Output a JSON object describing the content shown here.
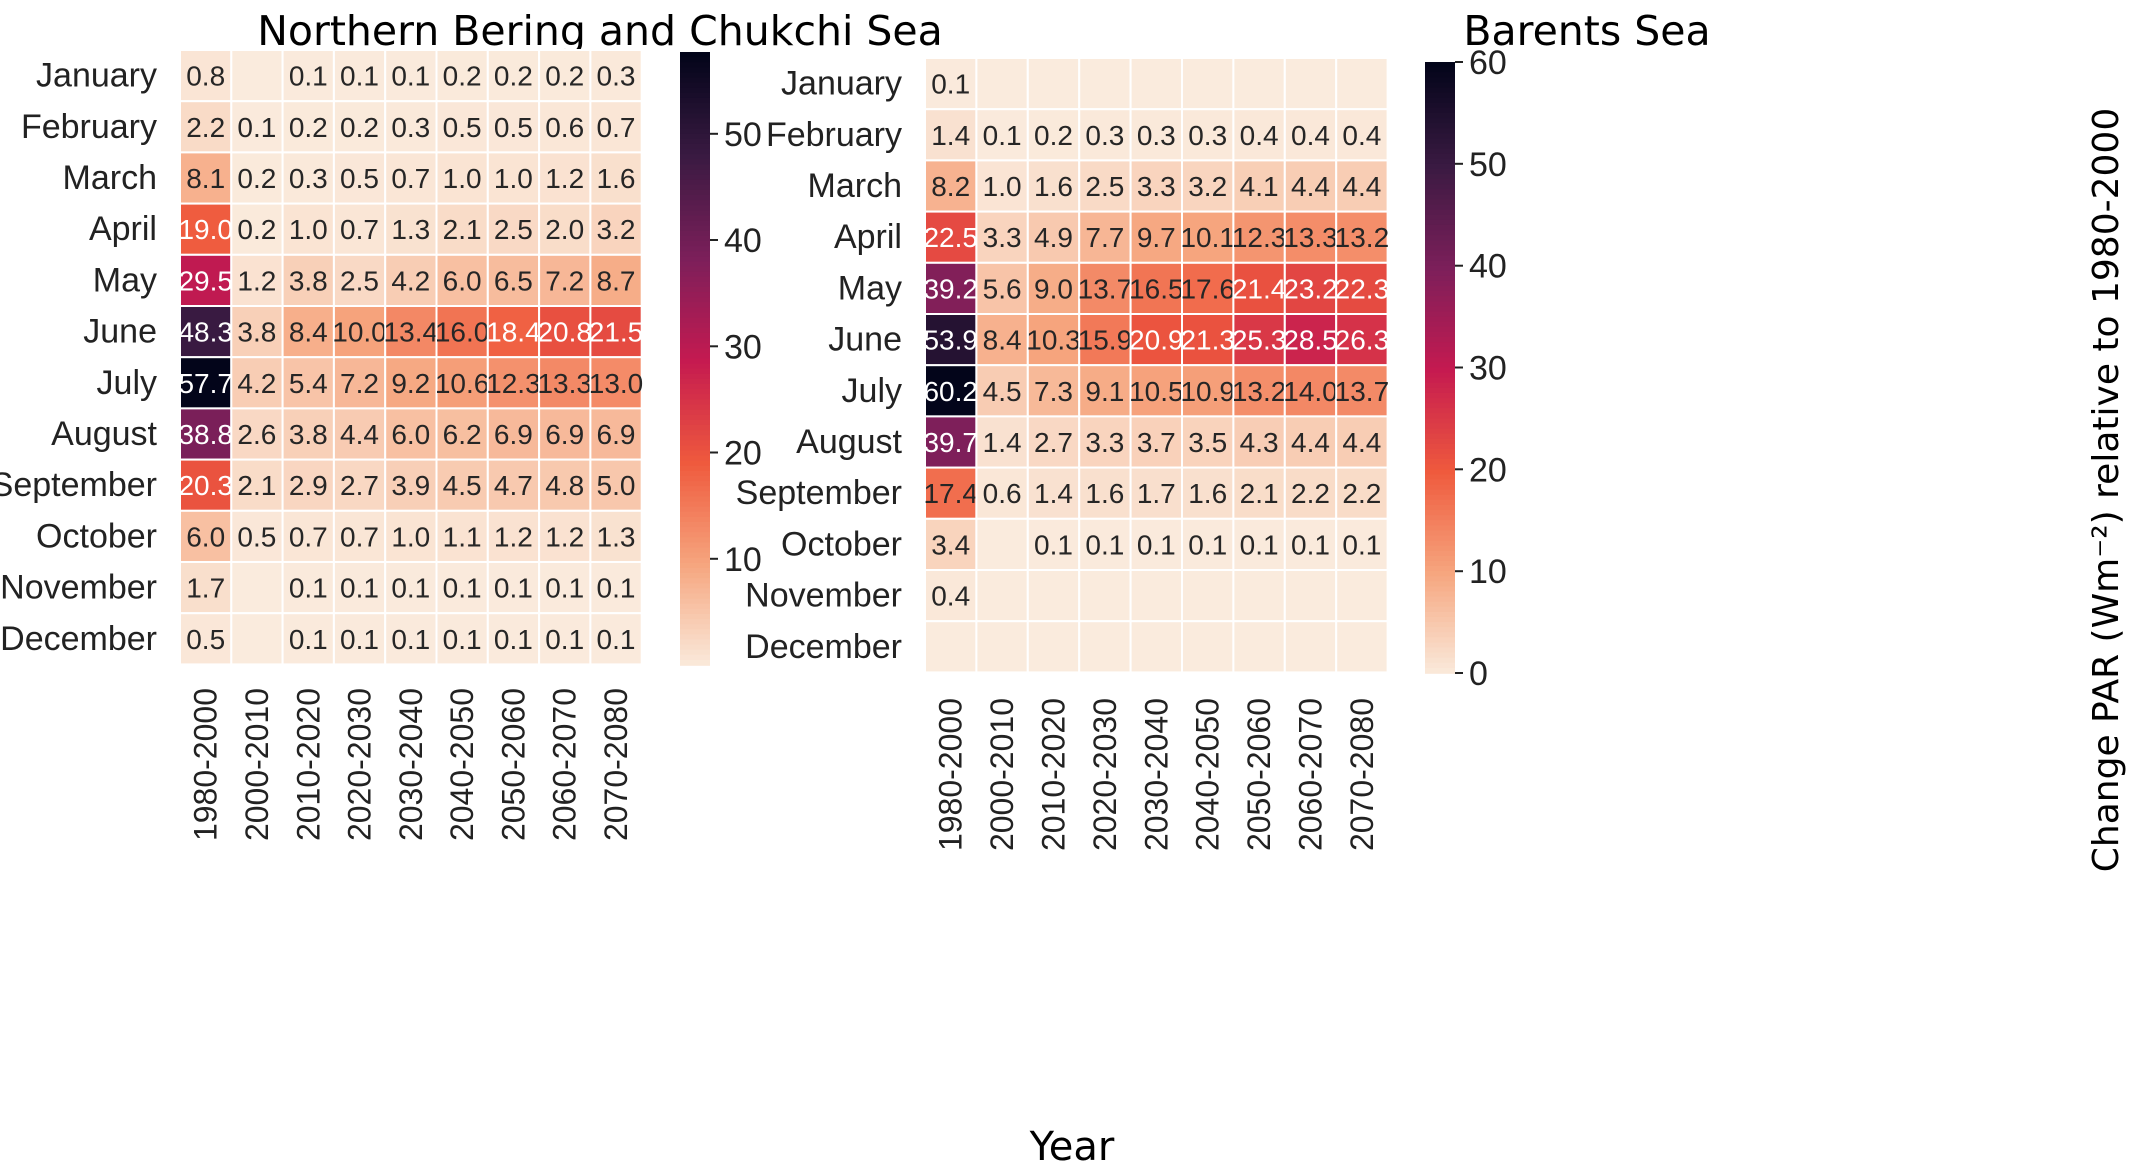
{
  "chart_data": {
    "type": "heatmap",
    "xlabel": "Year",
    "months": [
      "January",
      "February",
      "March",
      "April",
      "May",
      "June",
      "July",
      "August",
      "September",
      "October",
      "November",
      "December"
    ],
    "periods": [
      "1980-2000",
      "2000-2010",
      "2010-2020",
      "2020-2030",
      "2030-2040",
      "2040-2050",
      "2050-2060",
      "2060-2070",
      "2070-2080"
    ],
    "panels": [
      {
        "title": "Northern Bering and Chukchi Sea",
        "colorbar_range": [
          0,
          57.7
        ],
        "colorbar_ticks": [
          10,
          20,
          30,
          40,
          50
        ],
        "values": [
          [
            0.8,
            null,
            0.1,
            0.1,
            0.1,
            0.2,
            0.2,
            0.2,
            0.3
          ],
          [
            2.2,
            0.1,
            0.2,
            0.2,
            0.3,
            0.5,
            0.5,
            0.6,
            0.7
          ],
          [
            8.1,
            0.2,
            0.3,
            0.5,
            0.7,
            1.0,
            1.0,
            1.2,
            1.6
          ],
          [
            19.0,
            0.2,
            1.0,
            0.7,
            1.3,
            2.1,
            2.5,
            2.0,
            3.2
          ],
          [
            29.5,
            1.2,
            3.8,
            2.5,
            4.2,
            6.0,
            6.5,
            7.2,
            8.7
          ],
          [
            48.3,
            3.8,
            8.4,
            10.0,
            13.4,
            16.0,
            18.4,
            20.8,
            21.5
          ],
          [
            57.7,
            4.2,
            5.4,
            7.2,
            9.2,
            10.6,
            12.3,
            13.3,
            13.0
          ],
          [
            38.8,
            2.6,
            3.8,
            4.4,
            6.0,
            6.2,
            6.9,
            6.9,
            6.9
          ],
          [
            20.3,
            2.1,
            2.9,
            2.7,
            3.9,
            4.5,
            4.7,
            4.8,
            5.0
          ],
          [
            6.0,
            0.5,
            0.7,
            0.7,
            1.0,
            1.1,
            1.2,
            1.2,
            1.3
          ],
          [
            1.7,
            null,
            0.1,
            0.1,
            0.1,
            0.1,
            0.1,
            0.1,
            0.1
          ],
          [
            0.5,
            null,
            0.1,
            0.1,
            0.1,
            0.1,
            0.1,
            0.1,
            0.1
          ]
        ]
      },
      {
        "title": "Barents Sea",
        "colorbar_range": [
          0,
          60
        ],
        "colorbar_ticks": [
          0,
          10,
          20,
          30,
          40,
          50,
          60
        ],
        "colorbar_label": "Change PAR (Wm⁻²) relative to 1980-2000",
        "values": [
          [
            0.1,
            null,
            null,
            null,
            null,
            null,
            null,
            null,
            null
          ],
          [
            1.4,
            0.1,
            0.2,
            0.3,
            0.3,
            0.3,
            0.4,
            0.4,
            0.4
          ],
          [
            8.2,
            1.0,
            1.6,
            2.5,
            3.3,
            3.2,
            4.1,
            4.4,
            4.4
          ],
          [
            22.5,
            3.3,
            4.9,
            7.7,
            9.7,
            10.1,
            12.3,
            13.3,
            13.2
          ],
          [
            39.2,
            5.6,
            9.0,
            13.7,
            16.5,
            17.6,
            21.4,
            23.2,
            22.3
          ],
          [
            53.9,
            8.4,
            10.3,
            15.9,
            20.9,
            21.3,
            25.3,
            28.5,
            26.3
          ],
          [
            60.2,
            4.5,
            7.3,
            9.1,
            10.5,
            10.9,
            13.2,
            14.0,
            13.7
          ],
          [
            39.7,
            1.4,
            2.7,
            3.3,
            3.7,
            3.5,
            4.3,
            4.4,
            4.4
          ],
          [
            17.4,
            0.6,
            1.4,
            1.6,
            1.7,
            1.6,
            2.1,
            2.2,
            2.2
          ],
          [
            3.4,
            null,
            0.1,
            0.1,
            0.1,
            0.1,
            0.1,
            0.1,
            0.1
          ],
          [
            0.4,
            null,
            null,
            null,
            null,
            null,
            null,
            null,
            null
          ],
          [
            null,
            null,
            null,
            null,
            null,
            null,
            null,
            null,
            null
          ]
        ]
      }
    ],
    "colormap_stops": [
      "#faebdd",
      "#f6a67f",
      "#ef5a3d",
      "#c51a50",
      "#7c1f5a",
      "#3a1a42",
      "#03051a"
    ]
  }
}
